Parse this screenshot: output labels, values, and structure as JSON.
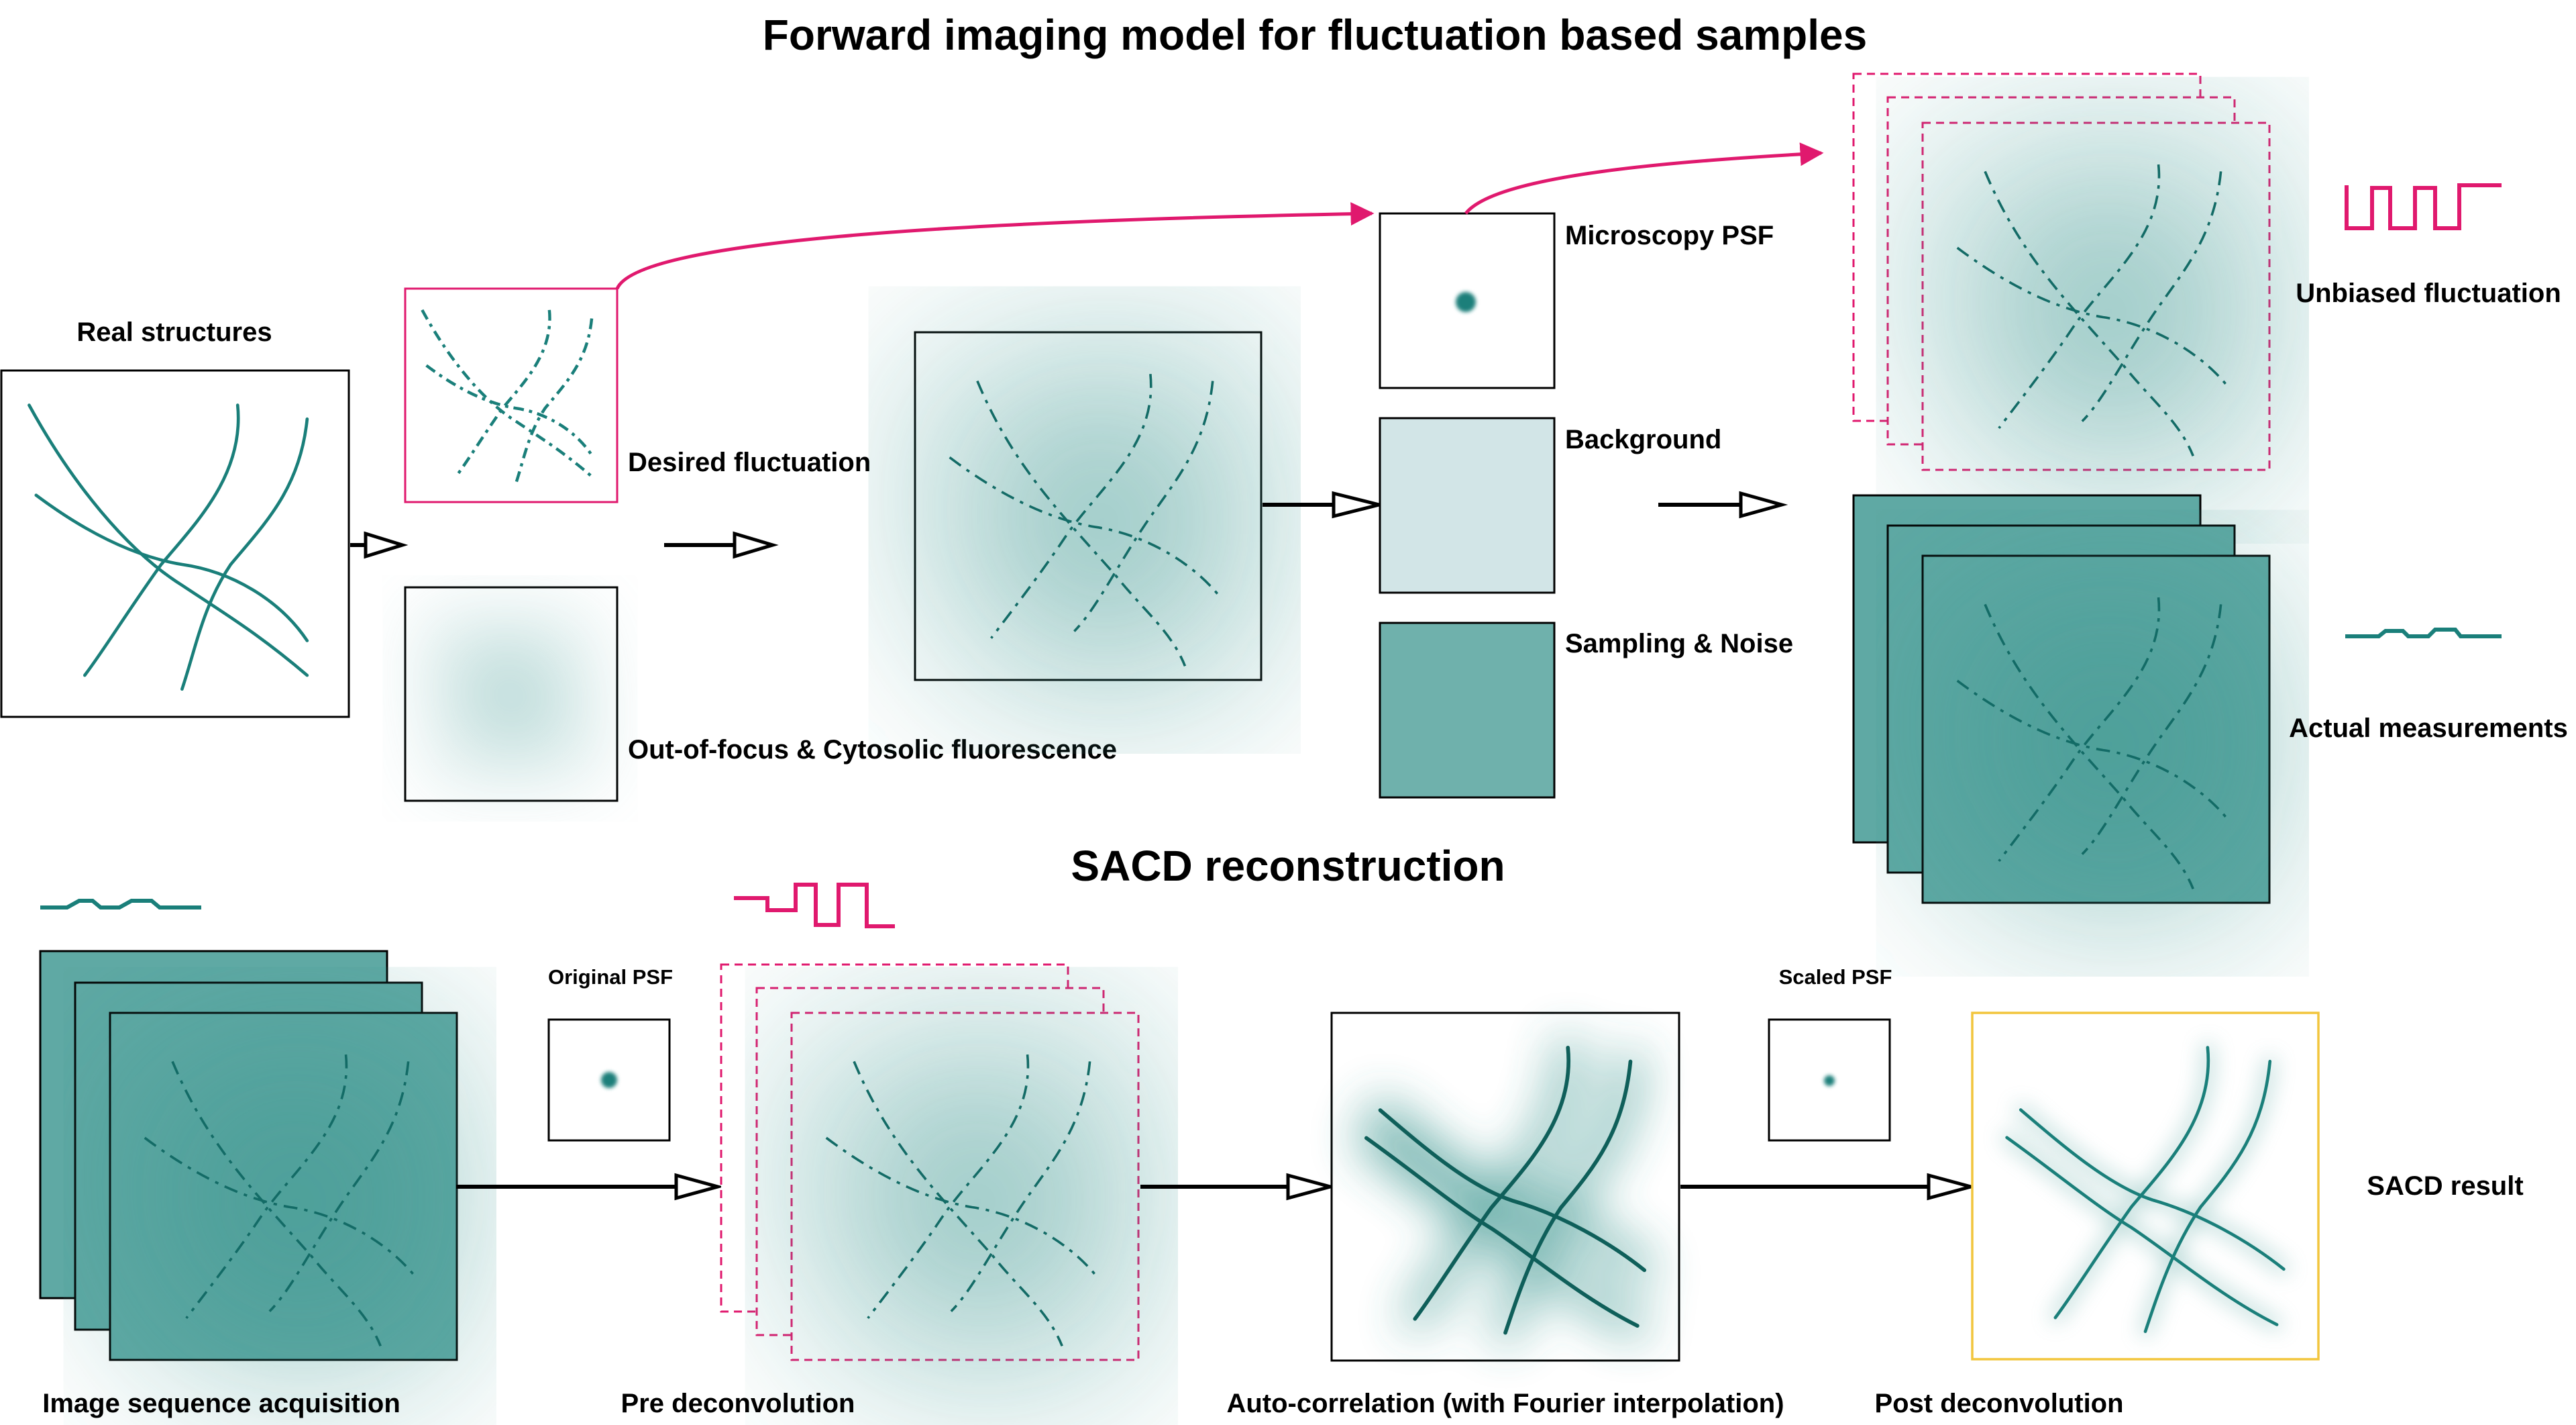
{
  "title": "Forward imaging model for fluctuation based samples",
  "subtitle": "SACD reconstruction",
  "forward": {
    "real_structures": "Real structures",
    "desired_fluctuation": "Desired fluctuation",
    "out_of_focus": "Out-of-focus & Cytosolic fluorescence",
    "microscopy_psf": "Microscopy PSF",
    "background": "Background",
    "sampling_noise": "Sampling & Noise",
    "unbiased_fluctuation": "Unbiased fluctuation",
    "actual_measurements": "Actual measurements"
  },
  "sacd": {
    "image_sequence": "Image sequence acquisition",
    "original_psf": "Original PSF",
    "pre_deconvolution": "Pre deconvolution",
    "auto_correlation": "Auto-correlation (with Fourier interpolation)",
    "scaled_psf": "Scaled PSF",
    "post_deconvolution": "Post deconvolution",
    "sacd_result": "SACD result"
  },
  "colors": {
    "teal": "#1a7f7a",
    "teal_panel": "#5fa9a4",
    "background_panel": "#d2e5e7",
    "pink": "#e0196e",
    "yellow": "#f2c53d"
  }
}
